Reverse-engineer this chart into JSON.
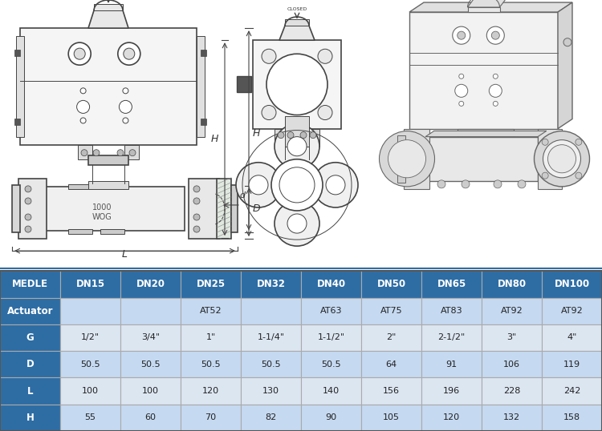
{
  "table_header": [
    "MEDLE",
    "DN15",
    "DN20",
    "DN25",
    "DN32",
    "DN40",
    "DN50",
    "DN65",
    "DN80",
    "DN100"
  ],
  "table_rows": [
    [
      "Actuator",
      "",
      "",
      "AT52",
      "",
      "AT63",
      "AT75",
      "AT83",
      "AT92",
      "AT92"
    ],
    [
      "G",
      "1/2\"",
      "3/4\"",
      "1\"",
      "1-1/4\"",
      "1-1/2\"",
      "2\"",
      "2-1/2\"",
      "3\"",
      "4\""
    ],
    [
      "D",
      "50.5",
      "50.5",
      "50.5",
      "50.5",
      "50.5",
      "64",
      "91",
      "106",
      "119"
    ],
    [
      "L",
      "100",
      "100",
      "120",
      "130",
      "140",
      "156",
      "196",
      "228",
      "242"
    ],
    [
      "H",
      "55",
      "60",
      "70",
      "82",
      "90",
      "105",
      "120",
      "132",
      "158"
    ]
  ],
  "header_bg": "#2e6da4",
  "row_bg_odd": "#c5d9f1",
  "row_bg_even": "#dce6f1",
  "border_color": "#aaaaaa",
  "fig_w": 7.5,
  "fig_h": 5.38,
  "dpi": 100
}
